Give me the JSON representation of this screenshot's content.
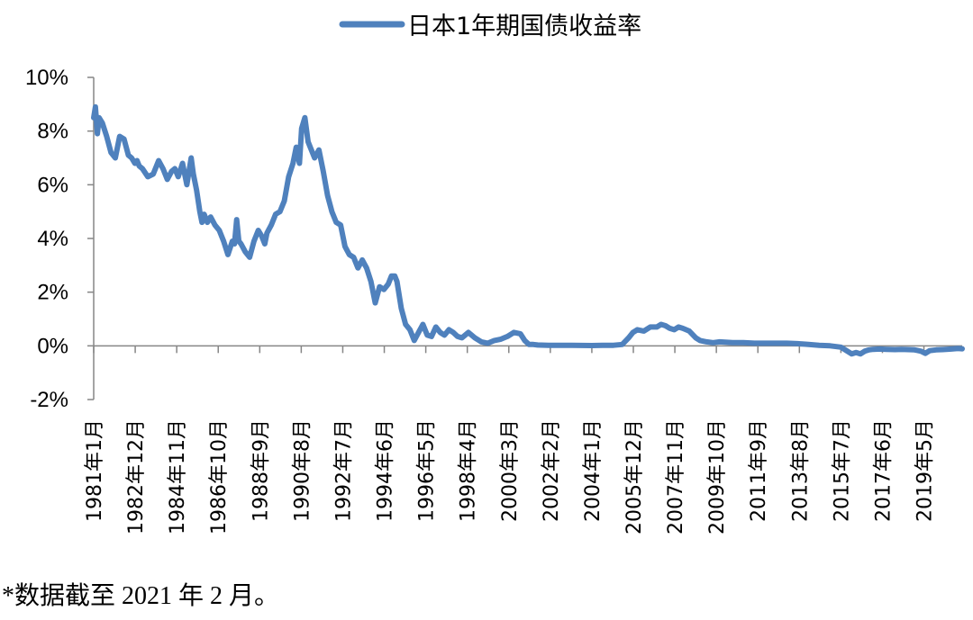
{
  "chart_data": {
    "type": "line",
    "series_name": "日本1年期国债收益率",
    "legend_position": "top-center",
    "series_color": "#4F81BD",
    "ylim": [
      -2,
      10
    ],
    "yticks": [
      -2,
      0,
      2,
      4,
      6,
      8,
      10
    ],
    "ytick_labels": [
      "-2%",
      "0%",
      "2%",
      "4%",
      "6%",
      "8%",
      "10%"
    ],
    "xlim": [
      1981.0,
      2021.1
    ],
    "x_tick_labels": [
      "1981年1月",
      "1982年12月",
      "1984年11月",
      "1986年10月",
      "1988年9月",
      "1990年8月",
      "1992年7月",
      "1994年6月",
      "1996年5月",
      "1998年4月",
      "2000年3月",
      "2002年2月",
      "2004年1月",
      "2005年12月",
      "2007年11月",
      "2009年10月",
      "2011年9月",
      "2013年8月",
      "2015年7月",
      "2017年6月",
      "2019年5月"
    ],
    "x_tick_values": [
      1981.0,
      1982.917,
      1984.833,
      1986.75,
      1988.667,
      1990.583,
      1992.5,
      1994.417,
      1996.333,
      1998.25,
      2000.167,
      2002.083,
      2004.0,
      2005.917,
      2007.833,
      2009.75,
      2011.667,
      2013.583,
      2015.5,
      2017.417,
      2019.333
    ],
    "grid": false,
    "x": [
      1981.0,
      1981.08,
      1981.17,
      1981.25,
      1981.4,
      1981.6,
      1981.8,
      1982.0,
      1982.2,
      1982.4,
      1982.6,
      1982.75,
      1982.9,
      1983.0,
      1983.1,
      1983.25,
      1983.5,
      1983.75,
      1984.0,
      1984.2,
      1984.4,
      1984.6,
      1984.75,
      1984.9,
      1985.1,
      1985.3,
      1985.5,
      1985.6,
      1985.75,
      1985.9,
      1986.0,
      1986.1,
      1986.25,
      1986.4,
      1986.6,
      1986.8,
      1987.0,
      1987.2,
      1987.4,
      1987.5,
      1987.6,
      1987.7,
      1987.8,
      1988.0,
      1988.2,
      1988.4,
      1988.6,
      1988.75,
      1988.9,
      1989.0,
      1989.2,
      1989.4,
      1989.6,
      1989.8,
      1990.0,
      1990.2,
      1990.35,
      1990.5,
      1990.6,
      1990.75,
      1990.9,
      1991.0,
      1991.2,
      1991.4,
      1991.6,
      1991.8,
      1992.0,
      1992.2,
      1992.4,
      1992.6,
      1992.8,
      1993.0,
      1993.2,
      1993.4,
      1993.6,
      1993.8,
      1994.0,
      1994.2,
      1994.4,
      1994.6,
      1994.75,
      1994.9,
      1995.0,
      1995.2,
      1995.4,
      1995.6,
      1995.8,
      1996.0,
      1996.2,
      1996.4,
      1996.6,
      1996.8,
      1997.0,
      1997.2,
      1997.4,
      1997.6,
      1997.8,
      1998.0,
      1998.3,
      1998.6,
      1998.9,
      1999.2,
      1999.5,
      1999.8,
      2000.1,
      2000.4,
      2000.7,
      2000.9,
      2001.1,
      2001.3,
      2001.5,
      2002.0,
      2003.0,
      2004.0,
      2004.5,
      2005.0,
      2005.4,
      2005.7,
      2005.9,
      2006.1,
      2006.4,
      2006.7,
      2007.0,
      2007.2,
      2007.4,
      2007.6,
      2007.8,
      2008.0,
      2008.2,
      2008.5,
      2008.8,
      2009.0,
      2009.3,
      2009.6,
      2009.9,
      2010.5,
      2011.0,
      2011.5,
      2012.0,
      2012.5,
      2013.0,
      2013.5,
      2014.0,
      2014.5,
      2015.0,
      2015.5,
      2015.8,
      2016.0,
      2016.2,
      2016.4,
      2016.6,
      2016.8,
      2017.0,
      2017.3,
      2017.6,
      2018.0,
      2018.3,
      2018.6,
      2018.9,
      2019.2,
      2019.4,
      2019.6,
      2019.9,
      2020.2,
      2020.6,
      2020.9,
      2021.1
    ],
    "values": [
      8.5,
      8.9,
      7.9,
      8.5,
      8.3,
      7.8,
      7.2,
      7.0,
      7.8,
      7.7,
      7.1,
      7.0,
      6.8,
      6.9,
      6.7,
      6.6,
      6.3,
      6.4,
      6.9,
      6.6,
      6.2,
      6.5,
      6.6,
      6.3,
      6.8,
      6.0,
      7.0,
      6.4,
      5.8,
      5.0,
      4.6,
      4.9,
      4.6,
      4.8,
      4.5,
      4.3,
      3.9,
      3.4,
      3.9,
      3.8,
      4.7,
      3.9,
      3.8,
      3.5,
      3.3,
      3.9,
      4.3,
      4.1,
      3.8,
      4.2,
      4.5,
      4.9,
      5.0,
      5.4,
      6.3,
      6.8,
      7.4,
      6.8,
      8.1,
      8.5,
      7.6,
      7.4,
      7.0,
      7.3,
      6.5,
      5.6,
      5.0,
      4.6,
      4.5,
      3.7,
      3.4,
      3.3,
      2.9,
      3.2,
      2.9,
      2.4,
      1.6,
      2.2,
      2.1,
      2.3,
      2.6,
      2.6,
      2.4,
      1.4,
      0.8,
      0.6,
      0.2,
      0.5,
      0.8,
      0.4,
      0.35,
      0.7,
      0.5,
      0.4,
      0.6,
      0.5,
      0.35,
      0.3,
      0.5,
      0.3,
      0.15,
      0.1,
      0.2,
      0.25,
      0.35,
      0.5,
      0.45,
      0.2,
      0.05,
      0.05,
      0.03,
      0.02,
      0.02,
      0.01,
      0.02,
      0.02,
      0.05,
      0.3,
      0.5,
      0.6,
      0.55,
      0.7,
      0.7,
      0.8,
      0.75,
      0.65,
      0.6,
      0.7,
      0.65,
      0.55,
      0.3,
      0.2,
      0.15,
      0.12,
      0.15,
      0.12,
      0.12,
      0.1,
      0.1,
      0.1,
      0.1,
      0.08,
      0.05,
      0.02,
      0.0,
      -0.05,
      -0.2,
      -0.3,
      -0.25,
      -0.3,
      -0.2,
      -0.15,
      -0.13,
      -0.12,
      -0.13,
      -0.14,
      -0.13,
      -0.14,
      -0.15,
      -0.2,
      -0.28,
      -0.18,
      -0.15,
      -0.14,
      -0.12,
      -0.1,
      -0.11
    ]
  },
  "footnote": "*数据截至 2021 年 2 月。"
}
